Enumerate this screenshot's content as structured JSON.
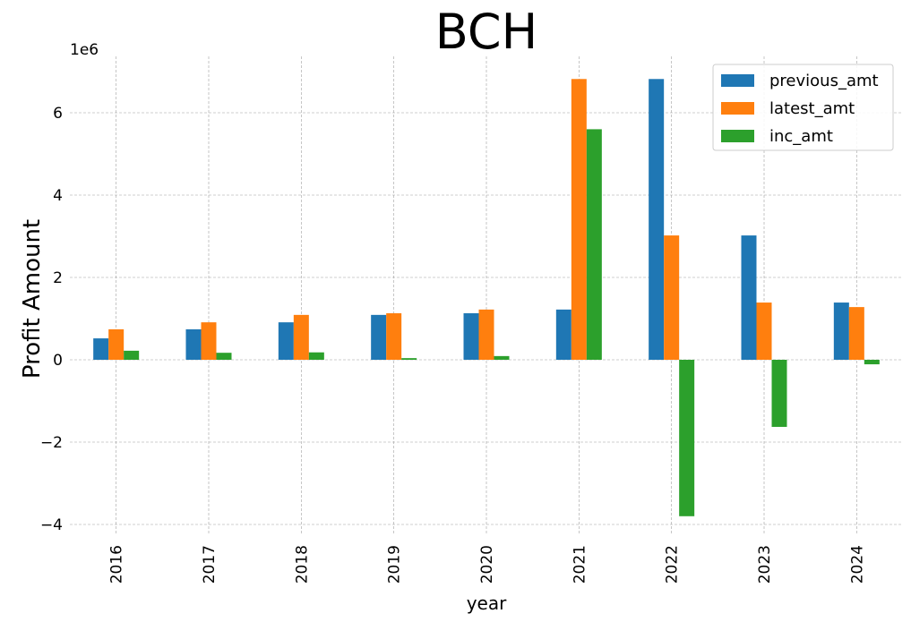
{
  "chart_data": {
    "type": "bar",
    "title": "BCH",
    "xlabel": "year",
    "ylabel": "Profit Amount",
    "y_offset_text": "1e6",
    "categories": [
      "2016",
      "2017",
      "2018",
      "2019",
      "2020",
      "2021",
      "2022",
      "2023",
      "2024"
    ],
    "series": [
      {
        "name": "previous_amt",
        "color": "#1f77b4",
        "values": [
          520000,
          740000,
          910000,
          1090000,
          1130000,
          1220000,
          6820000,
          3020000,
          1390000
        ]
      },
      {
        "name": "latest_amt",
        "color": "#ff7f0e",
        "values": [
          740000,
          910000,
          1090000,
          1130000,
          1220000,
          6820000,
          3020000,
          1390000,
          1280000
        ]
      },
      {
        "name": "inc_amt",
        "color": "#2ca02c",
        "values": [
          220000,
          170000,
          180000,
          40000,
          90000,
          5600000,
          -3800000,
          -1630000,
          -110000
        ]
      }
    ],
    "yticks": [
      -4,
      -2,
      0,
      2,
      4,
      6
    ],
    "ytick_labels": [
      "−4",
      "−2",
      "0",
      "2",
      "4",
      "6"
    ],
    "ylim": [
      -4400000,
      7400000
    ],
    "grid": true,
    "legend_position": "top-right"
  }
}
